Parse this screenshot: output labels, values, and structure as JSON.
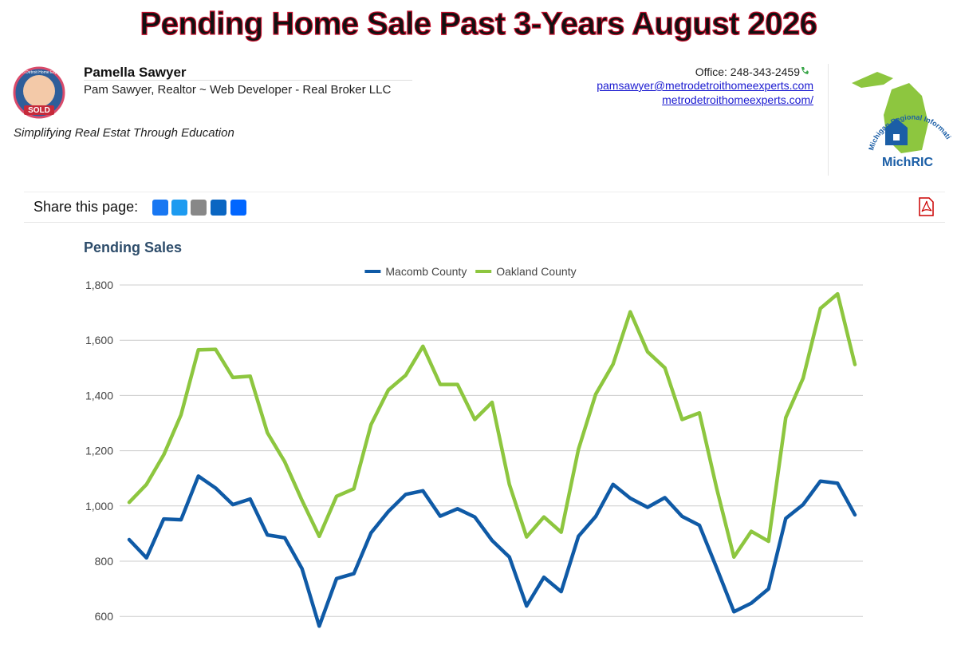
{
  "header": {
    "title": "Pending Home Sale Past 3-Years August 2026",
    "name": "Pamella Sawyer",
    "role": "Pam Sawyer, Realtor ~ Web Developer - Real Broker LLC",
    "tagline": "Simplifying Real Estat Through Education",
    "office": "Office: 248-343-2459",
    "email": "pamsawyer@metrodetroithomeexperts.com",
    "website": "metrodetroithomeexperts.com/",
    "logo_top": "Metro Detroit Home Experts",
    "logo_badge": "SOLD",
    "mls_arc": "Michigan Regional Information Center",
    "mls_name": "MichRIC"
  },
  "share": {
    "label": "Share this page:"
  },
  "chart_data": {
    "type": "line",
    "title": "Pending Sales",
    "series": [
      {
        "name": "Macomb County",
        "color": "#0f5aa6",
        "values": [
          878,
          812,
          953,
          950,
          1108,
          1065,
          1005,
          1025,
          895,
          885,
          773,
          565,
          737,
          755,
          903,
          980,
          1042,
          1055,
          963,
          990,
          960,
          875,
          815,
          638,
          742,
          690,
          890,
          962,
          1078,
          1028,
          995,
          1030,
          962,
          930,
          775,
          617,
          648,
          700,
          955,
          1005,
          1090,
          1082,
          968
        ]
      },
      {
        "name": "Oakland County",
        "color": "#8dc63f",
        "values": [
          1013,
          1078,
          1185,
          1330,
          1565,
          1567,
          1465,
          1470,
          1265,
          1160,
          1020,
          890,
          1035,
          1062,
          1295,
          1420,
          1473,
          1578,
          1440,
          1440,
          1313,
          1375,
          1078,
          888,
          960,
          905,
          1205,
          1405,
          1513,
          1703,
          1558,
          1500,
          1313,
          1337,
          1063,
          815,
          908,
          872,
          1320,
          1462,
          1715,
          1768,
          1512
        ]
      }
    ],
    "ylim": [
      500,
      1800
    ],
    "yticks": [
      600,
      {
        "value": 800,
        "label": "800"
      },
      {
        "value": 1000,
        "label": "1,000"
      },
      {
        "value": 1200,
        "label": "1,200"
      },
      {
        "value": 1400,
        "label": "1,400"
      },
      {
        "value": 1600,
        "label": "1,600"
      },
      {
        "value": 1800,
        "label": "1,800"
      }
    ],
    "grid": true,
    "legend": "top"
  }
}
